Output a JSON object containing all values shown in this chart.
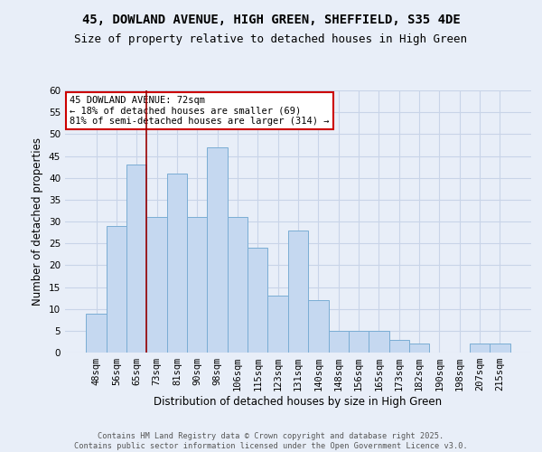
{
  "title_line1": "45, DOWLAND AVENUE, HIGH GREEN, SHEFFIELD, S35 4DE",
  "title_line2": "Size of property relative to detached houses in High Green",
  "xlabel": "Distribution of detached houses by size in High Green",
  "ylabel": "Number of detached properties",
  "categories": [
    "48sqm",
    "56sqm",
    "65sqm",
    "73sqm",
    "81sqm",
    "90sqm",
    "98sqm",
    "106sqm",
    "115sqm",
    "123sqm",
    "131sqm",
    "140sqm",
    "148sqm",
    "156sqm",
    "165sqm",
    "173sqm",
    "182sqm",
    "190sqm",
    "198sqm",
    "207sqm",
    "215sqm"
  ],
  "values": [
    9,
    29,
    43,
    31,
    41,
    31,
    47,
    31,
    24,
    13,
    28,
    12,
    5,
    5,
    5,
    3,
    2,
    0,
    0,
    2,
    2
  ],
  "bar_color": "#c5d8f0",
  "bar_edge_color": "#7aadd4",
  "bar_width": 1.0,
  "ylim": [
    0,
    60
  ],
  "yticks": [
    0,
    5,
    10,
    15,
    20,
    25,
    30,
    35,
    40,
    45,
    50,
    55,
    60
  ],
  "vline_x": 2.5,
  "vline_color": "#990000",
  "annotation_text": "45 DOWLAND AVENUE: 72sqm\n← 18% of detached houses are smaller (69)\n81% of semi-detached houses are larger (314) →",
  "annotation_box_color": "white",
  "annotation_box_edge_color": "#cc0000",
  "grid_color": "#c8d4e8",
  "background_color": "#e8eef8",
  "footnote": "Contains HM Land Registry data © Crown copyright and database right 2025.\nContains public sector information licensed under the Open Government Licence v3.0.",
  "title_fontsize": 10,
  "subtitle_fontsize": 9,
  "label_fontsize": 8.5,
  "tick_fontsize": 7.5,
  "annot_fontsize": 7.5
}
